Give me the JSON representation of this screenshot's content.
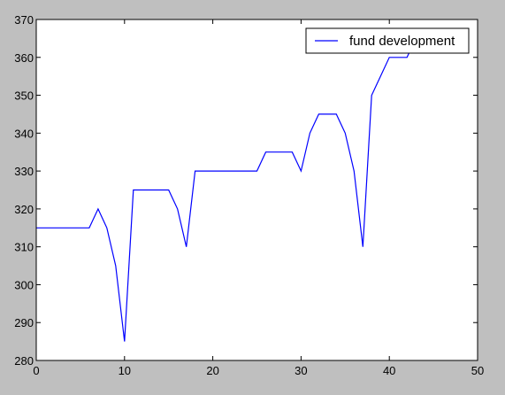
{
  "chart_data": {
    "type": "line",
    "title": "",
    "xlabel": "",
    "ylabel": "",
    "xlim": [
      0,
      50
    ],
    "ylim": [
      280,
      370
    ],
    "x_ticks": [
      0,
      10,
      20,
      30,
      40,
      50
    ],
    "y_ticks": [
      280,
      290,
      300,
      310,
      320,
      330,
      340,
      350,
      360,
      370
    ],
    "grid": false,
    "legend_position": "top-right",
    "series": [
      {
        "name": "fund development",
        "color": "#0000ff",
        "x": [
          0,
          1,
          2,
          3,
          4,
          5,
          6,
          7,
          8,
          9,
          10,
          11,
          12,
          13,
          14,
          15,
          16,
          17,
          18,
          19,
          20,
          21,
          22,
          23,
          24,
          25,
          26,
          27,
          28,
          29,
          30,
          31,
          32,
          33,
          34,
          35,
          36,
          37,
          38,
          39,
          40,
          41,
          42,
          43
        ],
        "y": [
          315,
          315,
          315,
          315,
          315,
          315,
          315,
          320,
          315,
          305,
          285,
          325,
          325,
          325,
          325,
          325,
          320,
          310,
          330,
          330,
          330,
          330,
          330,
          330,
          330,
          330,
          335,
          335,
          335,
          335,
          330,
          340,
          345,
          345,
          345,
          340,
          330,
          310,
          350,
          355,
          360,
          360,
          360,
          365
        ]
      }
    ]
  }
}
